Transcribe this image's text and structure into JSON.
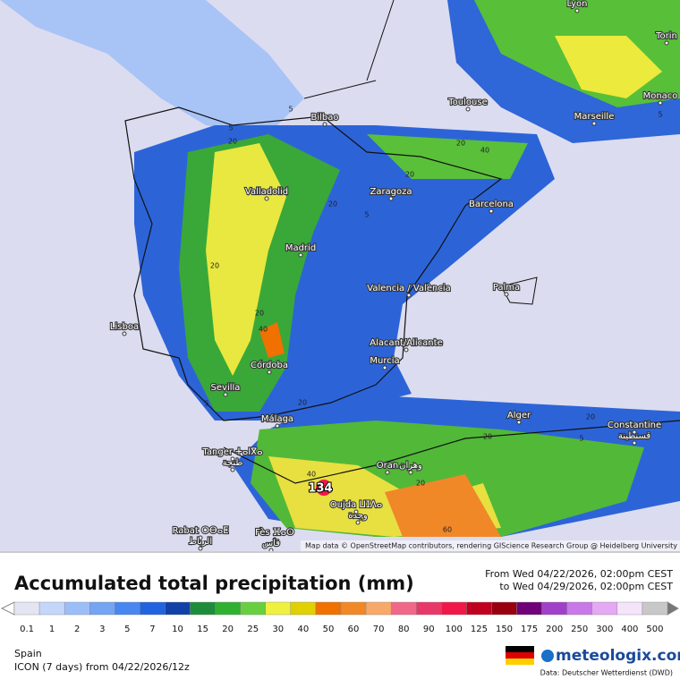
{
  "map": {
    "cities": [
      "Lyon",
      "Torin",
      "Monaco",
      "Toulouse",
      "Marseille",
      "Bilbao",
      "Valladolid",
      "Zaragoza",
      "Barcelona",
      "Madrid",
      "Valencia / València",
      "Palma",
      "Lisboa",
      "Alacant/Alicante",
      "Murcia",
      "Córdoba",
      "Sevilla",
      "Málaga",
      "Alger",
      "Constantine",
      "قسنطينة",
      "Tanger ⵜⴰⵏⴳⴰ",
      "طنجة",
      "Oran",
      "وهران",
      "Oujda ⵡⵊⴷⴰ",
      "وجدة",
      "Rabat ⵔⴱⴰⵟ",
      "الرباط",
      "Fès ⴼⴰⵙ",
      "فاس"
    ],
    "max_label": "134",
    "contour_labels": [
      "5",
      "5",
      "5",
      "20",
      "20",
      "20",
      "20",
      "40",
      "20",
      "5",
      "20",
      "40",
      "20",
      "5",
      "20",
      "40",
      "20",
      "5",
      "20",
      "60"
    ],
    "attribution": "Map data © OpenStreetMap contributors, rendering GIScience Research Group @ Heidelberg University"
  },
  "footer": {
    "title": "Accumulated total precipitation (mm)",
    "period_from": "From Wed 04/22/2026, 02:00pm CEST",
    "period_to": "to Wed 04/29/2026, 02:00pm CEST",
    "region": "Spain",
    "model": "ICON (7 days)  from  04/22/2026/12z",
    "brand": "meteologix.com",
    "source": "Data: Deutscher Wetterdienst (DWD)"
  },
  "scale": [
    {
      "label": "0.1",
      "color": "#e4e4f2"
    },
    {
      "label": "1",
      "color": "#c4d6fa"
    },
    {
      "label": "2",
      "color": "#9cbef8"
    },
    {
      "label": "3",
      "color": "#74a4f2"
    },
    {
      "label": "5",
      "color": "#4886f0"
    },
    {
      "label": "7",
      "color": "#2062e0"
    },
    {
      "label": "10",
      "color": "#1040a8"
    },
    {
      "label": "15",
      "color": "#1e8c3a"
    },
    {
      "label": "20",
      "color": "#30b030"
    },
    {
      "label": "25",
      "color": "#68d040"
    },
    {
      "label": "30",
      "color": "#f0f040"
    },
    {
      "label": "40",
      "color": "#e0d000"
    },
    {
      "label": "50",
      "color": "#f07000"
    },
    {
      "label": "60",
      "color": "#f08828"
    },
    {
      "label": "70",
      "color": "#f8a868"
    },
    {
      "label": "80",
      "color": "#f06888"
    },
    {
      "label": "90",
      "color": "#e83868"
    },
    {
      "label": "100",
      "color": "#f01848"
    },
    {
      "label": "125",
      "color": "#c00020"
    },
    {
      "label": "150",
      "color": "#980010"
    },
    {
      "label": "175",
      "color": "#700078"
    },
    {
      "label": "200",
      "color": "#a040c8"
    },
    {
      "label": "250",
      "color": "#c878e8"
    },
    {
      "label": "300",
      "color": "#e4a8f4"
    },
    {
      "label": "400",
      "color": "#f4e4fa"
    },
    {
      "label": "500",
      "color": "#c8c8c8"
    }
  ]
}
